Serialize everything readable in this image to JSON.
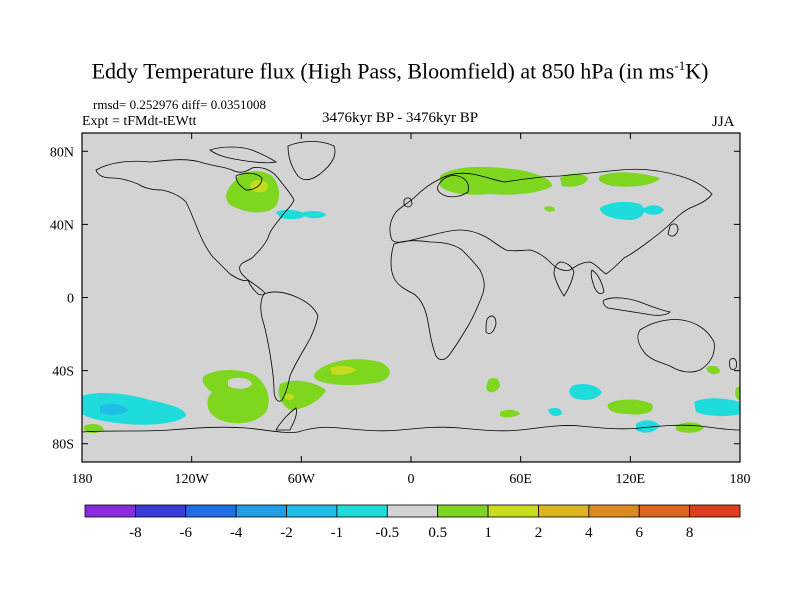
{
  "title": "Eddy Temperature flux (High Pass, Bloomfield) at 850 hPa (in ms",
  "title_unit_exponent": "-1",
  "title_suffix": "K)",
  "stats": "rmsd= 0.252976 diff= 0.0351008",
  "experiment": "Expt = tFMdt-tEWtt",
  "period": "3476kyr BP - 3476kyr BP",
  "season": "JJA",
  "map": {
    "background_color": "#d3d3d3",
    "x_ticks": [
      {
        "lon": -180,
        "label": "180"
      },
      {
        "lon": -120,
        "label": "120W"
      },
      {
        "lon": -60,
        "label": "60W"
      },
      {
        "lon": 0,
        "label": "0"
      },
      {
        "lon": 60,
        "label": "60E"
      },
      {
        "lon": 120,
        "label": "120E"
      },
      {
        "lon": 180,
        "label": "180"
      }
    ],
    "y_ticks": [
      {
        "lat": 80,
        "label": "80N"
      },
      {
        "lat": 40,
        "label": "40N"
      },
      {
        "lat": 0,
        "label": "0"
      },
      {
        "lat": -40,
        "label": "40S"
      },
      {
        "lat": -80,
        "label": "80S"
      }
    ]
  },
  "colorbar": {
    "colors": [
      "#8a2be2",
      "#3a3ad8",
      "#1e6ee6",
      "#1e9ee6",
      "#1ebee6",
      "#1edcdc",
      "#d3d3d3",
      "#7ed61e",
      "#c8dc1e",
      "#dcb41e",
      "#dc8c1e",
      "#e0641e",
      "#e03c1e"
    ],
    "labels": [
      "-8",
      "-6",
      "-4",
      "-2",
      "-1",
      "-0.5",
      "0.5",
      "1",
      "2",
      "4",
      "6",
      "8"
    ]
  },
  "legend_level_colors": {
    "positive_1": "#7ed61e",
    "positive_2": "#c8dc1e",
    "negative_1": "#1edcdc",
    "negative_2": "#1ebee6"
  }
}
